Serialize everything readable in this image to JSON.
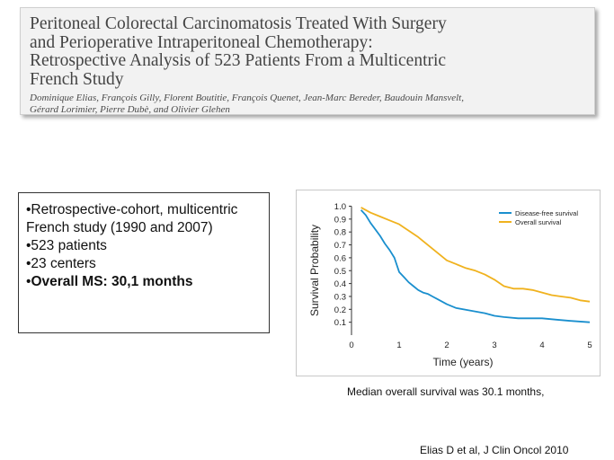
{
  "paper": {
    "title_lines": [
      "Peritoneal Colorectal Carcinomatosis Treated With Surgery",
      "and Perioperative Intraperitoneal Chemotherapy:",
      "Retrospective Analysis of 523 Patients From a Multicentric",
      "French Study"
    ],
    "author_lines": [
      "Dominique Elias, François Gilly, Florent Boutitie, François Quenet, Jean-Marc Bereder, Baudouin Mansvelt,",
      "Gérard Lorimier, Pierre Dubè, and Olivier Glehen"
    ]
  },
  "summary": {
    "items": [
      "•Retrospective-cohort, multicentric French study (1990 and 2007)",
      "•523 patients",
      "•23 centers"
    ],
    "bold_item_prefix": "•",
    "bold_item": "Overall MS: 30,1 months"
  },
  "caption": "Median overall survival was 30.1 months,",
  "citation": "Elias D et al, J Clin Oncol 2010",
  "chart_data": {
    "type": "line",
    "xlabel": "Time (years)",
    "ylabel": "Survival Probability",
    "xlim": [
      0,
      5
    ],
    "ylim": [
      0,
      1.0
    ],
    "x_ticks": [
      "0",
      "1",
      "2",
      "3",
      "4",
      "5"
    ],
    "y_ticks": [
      "0.1",
      "0.2",
      "0.3",
      "0.4",
      "0.5",
      "0.6",
      "0.7",
      "0.8",
      "0.9",
      "1.0"
    ],
    "grid": false,
    "legend_position": "top-right",
    "series": [
      {
        "name": "Disease-free survival",
        "color": "#1a8fce",
        "points": [
          [
            0.2,
            0.97
          ],
          [
            0.3,
            0.93
          ],
          [
            0.4,
            0.87
          ],
          [
            0.5,
            0.82
          ],
          [
            0.6,
            0.77
          ],
          [
            0.7,
            0.71
          ],
          [
            0.8,
            0.66
          ],
          [
            0.9,
            0.6
          ],
          [
            1.0,
            0.49
          ],
          [
            1.1,
            0.45
          ],
          [
            1.2,
            0.41
          ],
          [
            1.3,
            0.38
          ],
          [
            1.4,
            0.35
          ],
          [
            1.5,
            0.33
          ],
          [
            1.6,
            0.32
          ],
          [
            1.7,
            0.3
          ],
          [
            1.8,
            0.28
          ],
          [
            1.9,
            0.26
          ],
          [
            2.0,
            0.24
          ],
          [
            2.2,
            0.21
          ],
          [
            2.5,
            0.19
          ],
          [
            2.8,
            0.17
          ],
          [
            3.0,
            0.15
          ],
          [
            3.2,
            0.14
          ],
          [
            3.5,
            0.13
          ],
          [
            4.0,
            0.13
          ],
          [
            4.3,
            0.12
          ],
          [
            4.6,
            0.11
          ],
          [
            5.0,
            0.1
          ]
        ]
      },
      {
        "name": "Overall survival",
        "color": "#f0b21e",
        "points": [
          [
            0.2,
            0.99
          ],
          [
            0.4,
            0.95
          ],
          [
            0.6,
            0.92
          ],
          [
            0.8,
            0.89
          ],
          [
            1.0,
            0.86
          ],
          [
            1.2,
            0.81
          ],
          [
            1.4,
            0.76
          ],
          [
            1.6,
            0.7
          ],
          [
            1.8,
            0.64
          ],
          [
            2.0,
            0.58
          ],
          [
            2.2,
            0.55
          ],
          [
            2.4,
            0.52
          ],
          [
            2.6,
            0.5
          ],
          [
            2.8,
            0.47
          ],
          [
            3.0,
            0.43
          ],
          [
            3.2,
            0.38
          ],
          [
            3.4,
            0.36
          ],
          [
            3.6,
            0.36
          ],
          [
            3.8,
            0.35
          ],
          [
            4.0,
            0.33
          ],
          [
            4.2,
            0.31
          ],
          [
            4.4,
            0.3
          ],
          [
            4.6,
            0.29
          ],
          [
            4.8,
            0.27
          ],
          [
            5.0,
            0.26
          ]
        ]
      }
    ]
  }
}
